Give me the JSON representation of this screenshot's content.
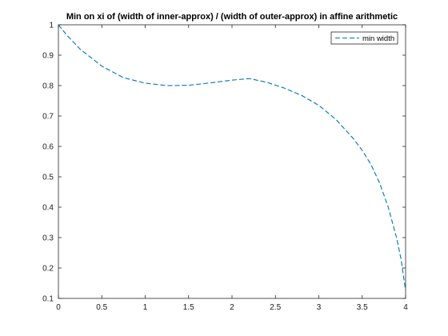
{
  "chart_data": {
    "type": "line",
    "title": "Min on xi of (width of inner-approx) / (width of outer-approx) in affine arithmetic",
    "xlabel": "",
    "ylabel": "",
    "xlim": [
      0,
      4
    ],
    "ylim": [
      0.1,
      1
    ],
    "xticks": [
      0,
      0.5,
      1,
      1.5,
      2,
      2.5,
      3,
      3.5,
      4
    ],
    "xtick_labels": [
      "0",
      "0.5",
      "1",
      "1.5",
      "2",
      "2.5",
      "3",
      "3.5",
      "4"
    ],
    "yticks": [
      0.1,
      0.2,
      0.3,
      0.4,
      0.5,
      0.6,
      0.7,
      0.8,
      0.9,
      1
    ],
    "ytick_labels": [
      "0.1",
      "0.2",
      "0.3",
      "0.4",
      "0.5",
      "0.6",
      "0.7",
      "0.8",
      "0.9",
      "1"
    ],
    "grid": false,
    "legend_position": "top-right",
    "series": [
      {
        "name": "min width",
        "color": "#0072bd",
        "line_style": "dashed",
        "x": [
          0,
          0.1,
          0.25,
          0.5,
          0.75,
          1.0,
          1.25,
          1.5,
          1.75,
          2.0,
          2.2,
          2.4,
          2.6,
          2.8,
          3.0,
          3.2,
          3.4,
          3.5,
          3.6,
          3.7,
          3.8,
          3.9,
          3.95,
          4.0
        ],
        "y": [
          1.0,
          0.965,
          0.92,
          0.864,
          0.826,
          0.808,
          0.8,
          0.801,
          0.809,
          0.818,
          0.823,
          0.811,
          0.792,
          0.768,
          0.735,
          0.688,
          0.625,
          0.587,
          0.541,
          0.48,
          0.4,
          0.295,
          0.225,
          0.125
        ]
      }
    ]
  }
}
